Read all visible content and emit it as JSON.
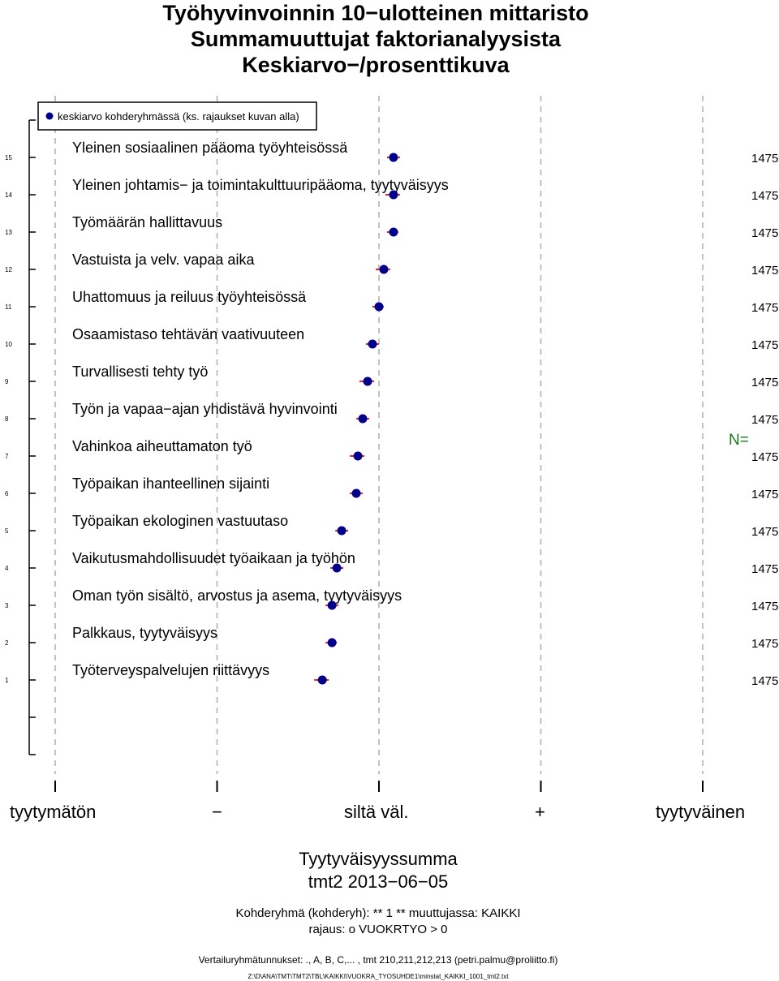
{
  "titles": {
    "line1": "Työhyvinvoinnin 10−ulotteinen mittaristo",
    "line2": "Summamuuttujat faktorianalyysista",
    "line3": "Keskiarvo−/prosenttikuva"
  },
  "legend": {
    "label": "keskiarvo kohderyhmässä (ks. rajaukset kuvan alla)",
    "color": "#00008b"
  },
  "n_label": "N=",
  "x_scale": {
    "left": "tyytymätön",
    "minus": "−",
    "middle": "siltä väl.",
    "plus": "+",
    "right": "tyytyväinen"
  },
  "footer": {
    "xlabel": "Tyytyväisyyssumma",
    "subtitle": "tmt2 2013−06−05",
    "target_group": "Kohderyhmä (kohderyh): ** 1 ** muuttujassa:  KAIKKI",
    "restriction": "rajaus:  o VUOKRTYO > 0",
    "comparison": "Vertailuryhmätunnukset: ., A, B, C,...   , tmt 210,211,212,213 (petri.palmu@proliitto.fi)",
    "filepath": "Z:\\D\\ANA\\TMT\\TMT2\\TBL\\KAIKKI\\VUOKRA_TYOSUHDE1\\minstat_KAIKKI_1001_tmt2.txt"
  },
  "chart_data": {
    "type": "scatter",
    "title": "Työhyvinvoinnin 10−ulotteinen mittaristo",
    "xlabel": "Tyytyväisyyssumma",
    "xlim": [
      1,
      5
    ],
    "x_ticks": [
      1,
      2,
      3,
      4,
      5
    ],
    "x_tick_labels": [
      "tyytymätön",
      "−",
      "siltä väl.",
      "+",
      "tyytyväinen"
    ],
    "grid": true,
    "colors": {
      "point": "#00008b",
      "ci": "#e8202a",
      "n_label": "#1a7a1a"
    },
    "points": [
      {
        "y": 15,
        "label": "Yleinen sosiaalinen pääoma työyhteisössä",
        "mean": 3.09,
        "ci": [
          3.05,
          3.13
        ],
        "n": "1475"
      },
      {
        "y": 14,
        "label": "Yleinen johtamis− ja toimintakulttuuripääoma, tyytyväisyys",
        "mean": 3.09,
        "ci": [
          3.04,
          3.13
        ],
        "n": "1475"
      },
      {
        "y": 13,
        "label": "Työmäärän hallittavuus",
        "mean": 3.09,
        "ci": [
          3.05,
          3.12
        ],
        "n": "1475"
      },
      {
        "y": 12,
        "label": "Vastuista ja velv. vapaa aika",
        "mean": 3.03,
        "ci": [
          2.98,
          3.07
        ],
        "n": "1475"
      },
      {
        "y": 11,
        "label": "Uhattomuus ja reiluus työyhteisössä",
        "mean": 3.0,
        "ci": [
          2.96,
          3.03
        ],
        "n": "1475"
      },
      {
        "y": 10,
        "label": "Osaamistaso tehtävän vaativuuteen",
        "mean": 2.96,
        "ci": [
          2.92,
          3.0
        ],
        "n": "1475"
      },
      {
        "y": 9,
        "label": "Turvallisesti tehty työ",
        "mean": 2.93,
        "ci": [
          2.88,
          2.97
        ],
        "n": "1475"
      },
      {
        "y": 8,
        "label": "Työn ja vapaa−ajan yhdistävä hyvinvointi",
        "mean": 2.9,
        "ci": [
          2.86,
          2.94
        ],
        "n": "1475"
      },
      {
        "y": 7,
        "label": "Vahinkoa aiheuttamaton työ",
        "mean": 2.87,
        "ci": [
          2.82,
          2.91
        ],
        "n": "1475"
      },
      {
        "y": 6,
        "label": "Työpaikan ihanteellinen sijainti",
        "mean": 2.86,
        "ci": [
          2.82,
          2.9
        ],
        "n": "1475"
      },
      {
        "y": 5,
        "label": "Työpaikan ekologinen vastuutaso",
        "mean": 2.77,
        "ci": [
          2.73,
          2.81
        ],
        "n": "1475"
      },
      {
        "y": 4,
        "label": "Vaikutusmahdollisuudet työaikaan ja työhön",
        "mean": 2.74,
        "ci": [
          2.7,
          2.78
        ],
        "n": "1475"
      },
      {
        "y": 3,
        "label": "Oman työn sisältö, arvostus ja asema, tyytyväisyys",
        "mean": 2.71,
        "ci": [
          2.67,
          2.75
        ],
        "n": "1475"
      },
      {
        "y": 2,
        "label": "Palkkaus, tyytyväisyys",
        "mean": 2.71,
        "ci": [
          2.67,
          2.74
        ],
        "n": "1475"
      },
      {
        "y": 1,
        "label": "Työterveyspalvelujen riittävyys",
        "mean": 2.65,
        "ci": [
          2.6,
          2.69
        ],
        "n": "1475"
      }
    ]
  }
}
